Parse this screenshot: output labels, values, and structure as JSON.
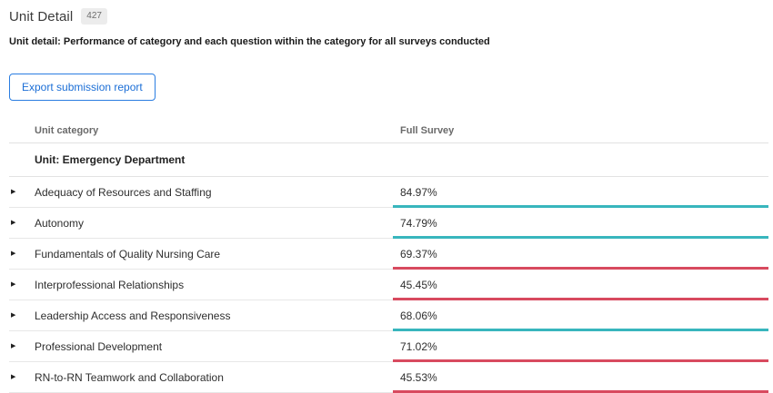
{
  "page": {
    "title": "Unit Detail",
    "badge_count": "427",
    "description": "Unit detail: Performance of category and each question within the category for all surveys conducted",
    "export_button_label": "Export submission report"
  },
  "table": {
    "columns": [
      "Unit category",
      "Full Survey"
    ],
    "group_header": "Unit: Emergency Department",
    "rows": [
      {
        "label": "Adequacy of Resources and Staffing",
        "value": "84.97%",
        "status": "positive"
      },
      {
        "label": "Autonomy",
        "value": "74.79%",
        "status": "positive"
      },
      {
        "label": "Fundamentals of Quality Nursing Care",
        "value": "69.37%",
        "status": "negative"
      },
      {
        "label": "Interprofessional Relationships",
        "value": "45.45%",
        "status": "negative"
      },
      {
        "label": "Leadership Access and Responsiveness",
        "value": "68.06%",
        "status": "positive"
      },
      {
        "label": "Professional Development",
        "value": "71.02%",
        "status": "negative"
      },
      {
        "label": "RN-to-RN Teamwork and Collaboration",
        "value": "45.53%",
        "status": "negative"
      }
    ]
  },
  "colors": {
    "positive": "#38b6bd",
    "negative": "#d84a5f",
    "accent_blue": "#1b6ed6"
  },
  "icons": {
    "expand_arrow": "▶"
  }
}
